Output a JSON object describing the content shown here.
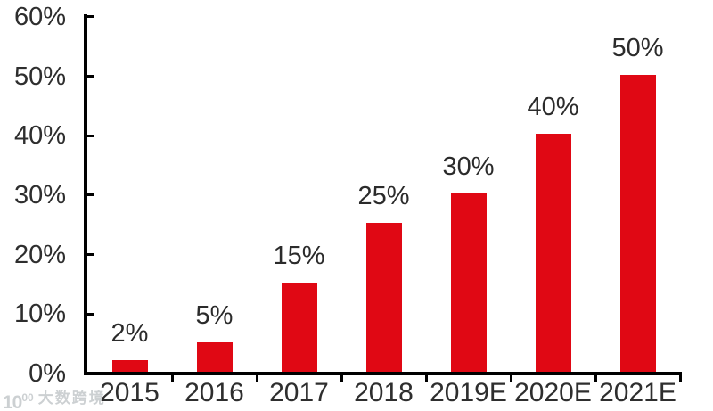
{
  "chart_data": {
    "type": "bar",
    "title": "",
    "xlabel": "",
    "ylabel": "",
    "categories": [
      "2015",
      "2016",
      "2017",
      "2018",
      "2019E",
      "2020E",
      "2021E"
    ],
    "values": [
      2,
      5,
      15,
      25,
      30,
      40,
      50
    ],
    "data_labels": [
      "2%",
      "5%",
      "15%",
      "25%",
      "30%",
      "40%",
      "50%"
    ],
    "y_ticks": [
      {
        "label": "0%",
        "value": 0
      },
      {
        "label": "10%",
        "value": 10
      },
      {
        "label": "20%",
        "value": 20
      },
      {
        "label": "30%",
        "value": 30
      },
      {
        "label": "40%",
        "value": 40
      },
      {
        "label": "50%",
        "value": 50
      },
      {
        "label": "60%",
        "value": 60
      }
    ],
    "ylim": [
      0,
      60
    ],
    "grid": false,
    "legend": null,
    "bar_color": "#e00814",
    "axis_color": "#000000",
    "label_color": "#2e2e2e"
  },
  "watermark": {
    "logo_main": "10",
    "logo_sup": "00",
    "text": "大数跨境"
  }
}
